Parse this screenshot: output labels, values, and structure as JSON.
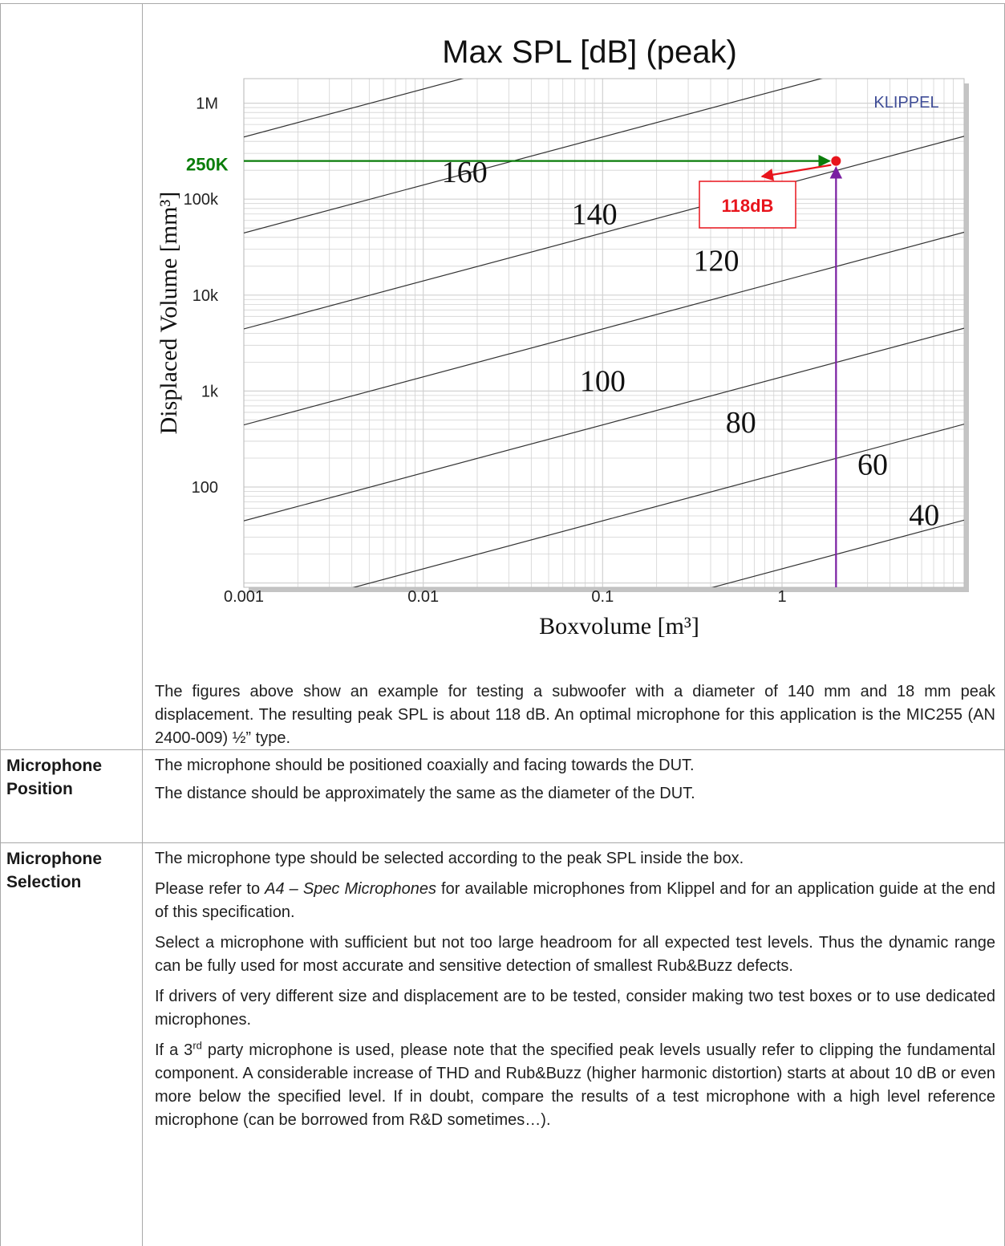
{
  "chart_data": {
    "type": "line",
    "title": "Max SPL [dB] (peak)",
    "xlabel": "Boxvolume [m³]",
    "ylabel": "Displaced Volume [mm³]",
    "x_scale": "log",
    "y_scale": "log",
    "xlim": [
      0.001,
      10
    ],
    "ylim": [
      5,
      1000000
    ],
    "grid": true,
    "x_ticks": [
      {
        "value": 0.001,
        "label": "0.001"
      },
      {
        "value": 0.01,
        "label": "0.01"
      },
      {
        "value": 0.1,
        "label": "0.1"
      },
      {
        "value": 1,
        "label": "1"
      }
    ],
    "y_ticks": [
      {
        "value": 100,
        "label": "100"
      },
      {
        "value": 1000,
        "label": "1k"
      },
      {
        "value": 10000,
        "label": "10k"
      },
      {
        "value": 100000,
        "label": "100k"
      },
      {
        "value": 1000000,
        "label": "1M"
      }
    ],
    "contour_labels": [
      {
        "label": "160",
        "x": 0.017,
        "y": 150000
      },
      {
        "label": "140",
        "x": 0.09,
        "y": 55000
      },
      {
        "label": "120",
        "x": 0.43,
        "y": 18000
      },
      {
        "label": "100",
        "x": 0.1,
        "y": 1000
      },
      {
        "label": "80",
        "x": 0.59,
        "y": 370
      },
      {
        "label": "60",
        "x": 3.2,
        "y": 135
      },
      {
        "label": "40",
        "x": 6.2,
        "y": 40
      }
    ],
    "brand": "KLIPPEL",
    "annotations": {
      "y_marker_label": "250K",
      "y_marker_value": 250000,
      "x_marker_value": 2.0,
      "point": {
        "x": 2.0,
        "y": 250000
      },
      "result_label": "118dB"
    },
    "colors": {
      "green_arrow": "#0a7d0a",
      "purple_arrow": "#7a1fa2",
      "red_marker": "#e8141c",
      "contour": "#333333",
      "grid": "#d2d2d2",
      "brand": "#3f4d97",
      "shadow": "#c4c4c4"
    }
  },
  "figure_description": "The figures above show an example for testing a subwoofer with a diameter of 140 mm and 18 mm peak displacement. The resulting peak SPL is about 118 dB. An optimal microphone for this application is the MIC255 (AN 2400-009) ½” type.",
  "rows": {
    "position": {
      "heading": "Microphone Position",
      "p1": "The microphone should be positioned coaxially and facing towards the DUT.",
      "p2": "The distance should be approximately the same as the diameter of the DUT."
    },
    "selection": {
      "heading": "Microphone Selection",
      "p1": "The microphone type should be selected according to the peak SPL inside the box.",
      "p2_pre": "Please refer to ",
      "p2_em": "A4 – Spec Microphones",
      "p2_post": " for available microphones from Klippel and for an application guide at the end of this specification.",
      "p3": "Select a microphone with sufficient but not too large headroom for all expected test levels. Thus the dynamic range can be fully used for most accurate and sensitive detection of smallest Rub&Buzz defects.",
      "p4": "If drivers of very different size and displacement are to be tested, consider making two test boxes or to use dedicated microphones.",
      "p5_pre": "If a 3",
      "p5_sup": "rd",
      "p5_post": " party microphone is used, please note that the specified peak levels usually refer to clipping the fundamental component. A considerable increase of THD and Rub&Buzz (higher harmonic distortion) starts at about 10 dB or even more below the specified level. If in doubt, compare the results of a test microphone with a high level reference microphone (can be borrowed from R&D sometimes…)."
    }
  }
}
